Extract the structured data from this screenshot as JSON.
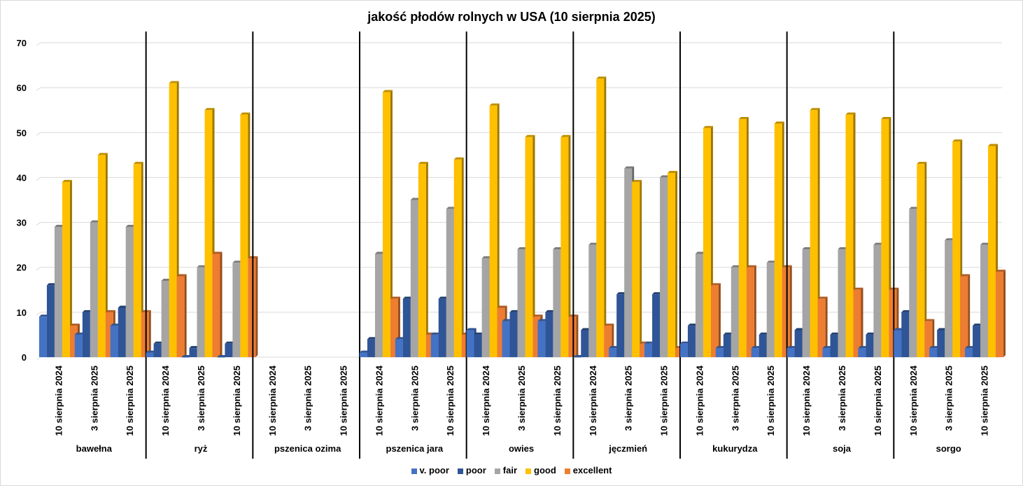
{
  "chart_data": {
    "type": "bar",
    "title": "jakość płodów rolnych w USA (10 sierpnia 2025)",
    "xlabel": "",
    "ylabel": "",
    "ylim": [
      0,
      70
    ],
    "yticks": [
      0,
      10,
      20,
      30,
      40,
      50,
      60,
      70
    ],
    "grid": true,
    "legend_position": "bottom",
    "groups": [
      "bawełna",
      "ryż",
      "pszenica ozima",
      "pszenica jara",
      "owies",
      "jęczmień",
      "kukurydza",
      "soja",
      "sorgo"
    ],
    "subcategories": [
      "10 sierpnia 2024",
      "3 sierpnia 2025",
      "10 sierpnia 2025"
    ],
    "series": [
      {
        "name": "v. poor",
        "color": "#4472C4",
        "values": [
          [
            9,
            5,
            7
          ],
          [
            1,
            0,
            0
          ],
          [
            null,
            null,
            null
          ],
          [
            1,
            4,
            5
          ],
          [
            6,
            8,
            8
          ],
          [
            0,
            2,
            3
          ],
          [
            3,
            2,
            2
          ],
          [
            2,
            2,
            2
          ],
          [
            6,
            2,
            2
          ]
        ]
      },
      {
        "name": "poor",
        "color": "#2F5597",
        "values": [
          [
            16,
            10,
            11
          ],
          [
            3,
            2,
            3
          ],
          [
            null,
            null,
            null
          ],
          [
            4,
            13,
            13
          ],
          [
            5,
            10,
            10
          ],
          [
            6,
            14,
            14
          ],
          [
            7,
            5,
            5
          ],
          [
            6,
            5,
            5
          ],
          [
            10,
            6,
            7
          ]
        ]
      },
      {
        "name": "fair",
        "color": "#A5A5A5",
        "values": [
          [
            29,
            30,
            29
          ],
          [
            17,
            20,
            21
          ],
          [
            null,
            null,
            null
          ],
          [
            23,
            35,
            33
          ],
          [
            22,
            24,
            24
          ],
          [
            25,
            42,
            40
          ],
          [
            23,
            20,
            21
          ],
          [
            24,
            24,
            25
          ],
          [
            33,
            26,
            25
          ]
        ]
      },
      {
        "name": "good",
        "color": "#FFC000",
        "values": [
          [
            39,
            45,
            43
          ],
          [
            61,
            55,
            54
          ],
          [
            null,
            null,
            null
          ],
          [
            59,
            43,
            44
          ],
          [
            56,
            49,
            49
          ],
          [
            62,
            39,
            41
          ],
          [
            51,
            53,
            52
          ],
          [
            55,
            54,
            53
          ],
          [
            43,
            48,
            47
          ]
        ]
      },
      {
        "name": "excellent",
        "color": "#ED7D31",
        "values": [
          [
            7,
            10,
            10
          ],
          [
            18,
            23,
            22
          ],
          [
            null,
            null,
            null
          ],
          [
            13,
            5,
            5
          ],
          [
            11,
            9,
            9
          ],
          [
            7,
            3,
            2
          ],
          [
            16,
            20,
            20
          ],
          [
            13,
            15,
            15
          ],
          [
            8,
            18,
            19
          ]
        ]
      }
    ]
  }
}
